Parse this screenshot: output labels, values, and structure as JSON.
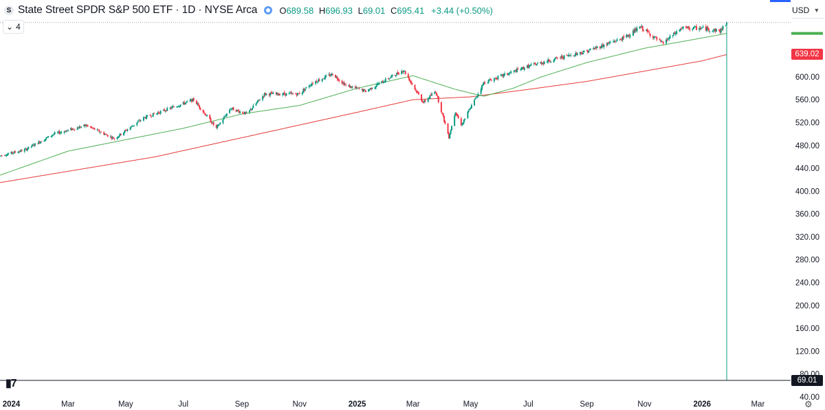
{
  "header": {
    "symbol_icon": "S",
    "title": "State Street SPDR S&P 500 ETF · 1D · NYSE Arca",
    "status_icon": "market-status-icon",
    "ohlc": [
      {
        "key": "O",
        "value": "689.58"
      },
      {
        "key": "H",
        "value": "696.93"
      },
      {
        "key": "L",
        "value": "69.01"
      },
      {
        "key": "C",
        "value": "695.41"
      }
    ],
    "change": "+3.44 (+0.50%)",
    "indicator_count": "4",
    "currency": "USD"
  },
  "price_tags": [
    {
      "text": "639.02",
      "color": "#f23645",
      "value": 639.02
    },
    {
      "text": "69.01",
      "color": "#131722",
      "value": 69.01
    }
  ],
  "colors": {
    "up": "#089981",
    "down": "#f23645",
    "ma_fast": "#4caf50",
    "ma_slow": "#e53935",
    "text": "#131722",
    "grid": "#f0f3fa"
  },
  "chart_data": {
    "type": "candlestick",
    "ylim": [
      40,
      720
    ],
    "y_ticks": [
      "600.00",
      "560.00",
      "520.00",
      "480.00",
      "440.00",
      "400.00",
      "360.00",
      "320.00",
      "280.00",
      "240.00",
      "200.00",
      "160.00",
      "120.00",
      "80.00",
      "40.00"
    ],
    "x_ticks": [
      {
        "label": "2024",
        "date": "2024-01-01",
        "bold": true
      },
      {
        "label": "Mar",
        "date": "2024-03-01"
      },
      {
        "label": "May",
        "date": "2024-05-01"
      },
      {
        "label": "Jul",
        "date": "2024-07-01"
      },
      {
        "label": "Sep",
        "date": "2024-09-01"
      },
      {
        "label": "Nov",
        "date": "2024-11-01"
      },
      {
        "label": "2025",
        "date": "2025-01-01",
        "bold": true
      },
      {
        "label": "Mar",
        "date": "2025-03-01"
      },
      {
        "label": "May",
        "date": "2025-05-01"
      },
      {
        "label": "Jul",
        "date": "2025-07-01"
      },
      {
        "label": "Sep",
        "date": "2025-09-01"
      },
      {
        "label": "Nov",
        "date": "2025-11-01"
      },
      {
        "label": "2026",
        "date": "2026-01-01",
        "bold": true
      },
      {
        "label": "Mar",
        "date": "2026-03-01"
      }
    ],
    "x_range": [
      "2023-12-20",
      "2026-04-01"
    ],
    "price_anchors": [
      [
        "2023-12-20",
        462
      ],
      [
        "2024-01-15",
        472
      ],
      [
        "2024-02-15",
        500
      ],
      [
        "2024-03-20",
        515
      ],
      [
        "2024-04-19",
        492
      ],
      [
        "2024-05-20",
        528
      ],
      [
        "2024-07-12",
        560
      ],
      [
        "2024-08-05",
        510
      ],
      [
        "2024-08-20",
        545
      ],
      [
        "2024-09-06",
        535
      ],
      [
        "2024-09-25",
        570
      ],
      [
        "2024-10-31",
        570
      ],
      [
        "2024-11-15",
        590
      ],
      [
        "2024-12-06",
        605
      ],
      [
        "2024-12-20",
        585
      ],
      [
        "2025-01-10",
        575
      ],
      [
        "2025-02-19",
        612
      ],
      [
        "2025-03-12",
        555
      ],
      [
        "2025-03-25",
        575
      ],
      [
        "2025-04-08",
        495
      ],
      [
        "2025-04-15",
        540
      ],
      [
        "2025-04-21",
        515
      ],
      [
        "2025-05-15",
        590
      ],
      [
        "2025-06-30",
        618
      ],
      [
        "2025-07-31",
        632
      ],
      [
        "2025-09-01",
        645
      ],
      [
        "2025-10-10",
        668
      ],
      [
        "2025-10-28",
        687
      ],
      [
        "2025-11-20",
        658
      ],
      [
        "2025-12-10",
        685
      ],
      [
        "2026-01-02",
        685
      ],
      [
        "2026-01-20",
        680
      ],
      [
        "2026-01-27",
        695
      ]
    ],
    "sma_fast_anchors": [
      [
        "2023-12-20",
        428
      ],
      [
        "2024-03-01",
        470
      ],
      [
        "2024-05-01",
        490
      ],
      [
        "2024-07-01",
        510
      ],
      [
        "2024-09-01",
        535
      ],
      [
        "2024-11-01",
        550
      ],
      [
        "2025-01-01",
        580
      ],
      [
        "2025-03-01",
        602
      ],
      [
        "2025-04-15",
        578
      ],
      [
        "2025-05-15",
        566
      ],
      [
        "2025-06-15",
        580
      ],
      [
        "2025-07-15",
        600
      ],
      [
        "2025-09-01",
        625
      ],
      [
        "2025-11-01",
        650
      ],
      [
        "2026-01-01",
        668
      ],
      [
        "2026-01-27",
        676
      ]
    ],
    "sma_slow_anchors": [
      [
        "2023-12-20",
        415
      ],
      [
        "2024-06-01",
        460
      ],
      [
        "2025-01-01",
        538
      ],
      [
        "2025-03-01",
        560
      ],
      [
        "2025-05-01",
        565
      ],
      [
        "2025-07-01",
        578
      ],
      [
        "2025-09-01",
        592
      ],
      [
        "2025-11-01",
        610
      ],
      [
        "2026-01-01",
        628
      ],
      [
        "2026-01-27",
        639
      ]
    ],
    "last_date": "2026-01-27",
    "low_value": 69.01
  }
}
